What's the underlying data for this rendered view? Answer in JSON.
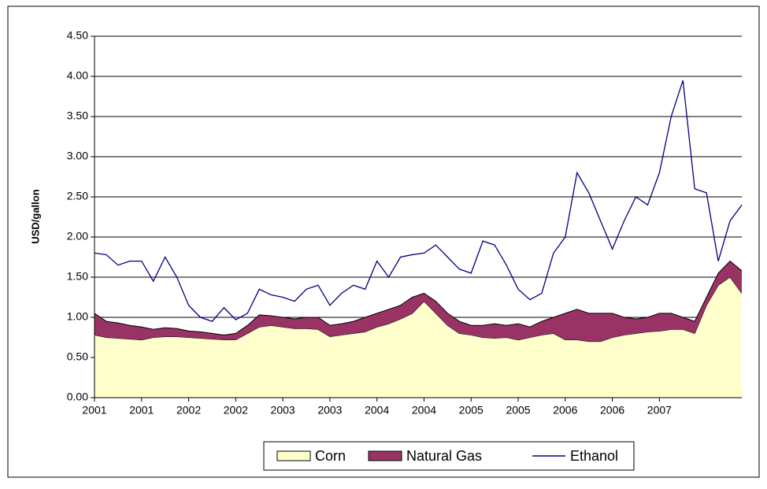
{
  "chart_data": {
    "type": "stacked-area-line",
    "y_label": "USD/gallon",
    "categories": [
      "2001",
      null,
      null,
      null,
      "2001",
      null,
      null,
      null,
      "2002",
      null,
      null,
      null,
      "2002",
      null,
      null,
      null,
      "2003",
      null,
      null,
      null,
      "2003",
      null,
      null,
      null,
      "2004",
      null,
      null,
      null,
      "2004",
      null,
      null,
      null,
      "2005",
      null,
      null,
      null,
      "2005",
      null,
      null,
      null,
      "2006",
      null,
      null,
      null,
      "2006",
      null,
      null,
      null,
      "2007",
      null,
      null,
      null,
      null,
      null,
      null,
      null
    ],
    "series": [
      {
        "name": "Corn",
        "kind": "area",
        "color": "#ffffcc",
        "values": [
          0.78,
          0.75,
          0.74,
          0.73,
          0.72,
          0.75,
          0.76,
          0.76,
          0.75,
          0.74,
          0.73,
          0.72,
          0.72,
          0.8,
          0.88,
          0.9,
          0.88,
          0.86,
          0.86,
          0.85,
          0.76,
          0.78,
          0.8,
          0.82,
          0.88,
          0.92,
          0.98,
          1.05,
          1.2,
          1.05,
          0.9,
          0.8,
          0.78,
          0.75,
          0.74,
          0.75,
          0.72,
          0.75,
          0.78,
          0.8,
          0.72,
          0.72,
          0.7,
          0.7,
          0.75,
          0.78,
          0.8,
          0.82,
          0.83,
          0.85,
          0.85,
          0.8,
          1.15,
          1.4,
          1.5,
          1.3
        ]
      },
      {
        "name": "Natural Gas",
        "kind": "area",
        "color": "#993366",
        "values": [
          0.27,
          0.2,
          0.19,
          0.17,
          0.16,
          0.1,
          0.11,
          0.1,
          0.08,
          0.08,
          0.07,
          0.06,
          0.08,
          0.1,
          0.15,
          0.12,
          0.12,
          0.12,
          0.14,
          0.15,
          0.14,
          0.14,
          0.15,
          0.18,
          0.17,
          0.18,
          0.17,
          0.2,
          0.1,
          0.15,
          0.15,
          0.15,
          0.12,
          0.15,
          0.18,
          0.15,
          0.2,
          0.13,
          0.17,
          0.2,
          0.33,
          0.38,
          0.35,
          0.35,
          0.3,
          0.22,
          0.18,
          0.18,
          0.22,
          0.2,
          0.15,
          0.15,
          0.1,
          0.15,
          0.2,
          0.28
        ]
      },
      {
        "name": "Ethanol",
        "kind": "line",
        "color": "#000080",
        "values": [
          1.8,
          1.78,
          1.65,
          1.7,
          1.7,
          1.45,
          1.75,
          1.5,
          1.15,
          1.0,
          0.95,
          1.12,
          0.97,
          1.05,
          1.35,
          1.28,
          1.25,
          1.2,
          1.35,
          1.4,
          1.15,
          1.3,
          1.4,
          1.35,
          1.7,
          1.5,
          1.75,
          1.78,
          1.8,
          1.9,
          1.75,
          1.6,
          1.55,
          1.95,
          1.9,
          1.65,
          1.35,
          1.22,
          1.3,
          1.8,
          2.0,
          2.8,
          2.55,
          2.2,
          1.85,
          2.2,
          2.5,
          2.4,
          2.8,
          3.5,
          3.95,
          2.6,
          2.55,
          1.7,
          2.2,
          2.4
        ]
      }
    ],
    "ylim": [
      0,
      4.5
    ],
    "yticks": [
      {
        "value": 0,
        "label": "0.00"
      },
      {
        "value": 0.5,
        "label": "0.50"
      },
      {
        "value": 1,
        "label": "1.00"
      },
      {
        "value": 1.5,
        "label": "1.50"
      },
      {
        "value": 2,
        "label": "2.00"
      },
      {
        "value": 2.5,
        "label": "2.50"
      },
      {
        "value": 3,
        "label": "3.00"
      },
      {
        "value": 3.5,
        "label": "3.50"
      },
      {
        "value": 4,
        "label": "4.00"
      },
      {
        "value": 4.5,
        "label": "4.50"
      }
    ],
    "grid": true
  }
}
